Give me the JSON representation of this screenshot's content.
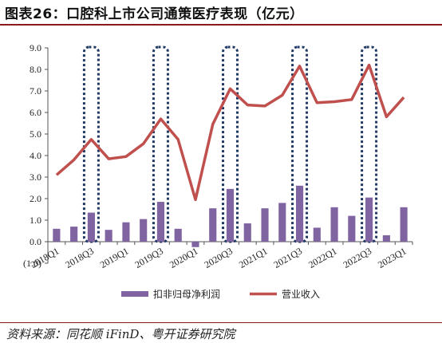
{
  "title": "图表26：口腔科上市公司通策医疗表现（亿元）",
  "source": "资料来源：同花顺 iFinD、粤开证券研究院",
  "colors": {
    "bar": "#8064a2",
    "line": "#c0504d",
    "box": "#1f3864",
    "accent": "#8b1a1a"
  },
  "chart_data": {
    "type": "bar",
    "categories": [
      "2018Q1",
      "2018Q2",
      "2018Q3",
      "2018Q4",
      "2019Q1",
      "2019Q2",
      "2019Q3",
      "2019Q4",
      "2020Q1",
      "2020Q2",
      "2020Q3",
      "2020Q4",
      "2021Q1",
      "2021Q2",
      "2021Q3",
      "2021Q4",
      "2022Q1",
      "2022Q2",
      "2022Q3",
      "2022Q4",
      "2023Q1"
    ],
    "x_tick_labels": [
      "2018Q1",
      "2018Q3",
      "2019Q1",
      "2019Q3",
      "2020Q1",
      "2020Q3",
      "2021Q1",
      "2021Q3",
      "2022Q1",
      "2022Q3",
      "2023Q1"
    ],
    "series": [
      {
        "name": "扣非归母净利润",
        "type": "bar",
        "values": [
          0.6,
          0.7,
          1.35,
          0.55,
          0.9,
          1.05,
          1.85,
          0.6,
          -0.25,
          1.55,
          2.45,
          0.85,
          1.55,
          1.8,
          2.6,
          0.65,
          1.6,
          1.2,
          2.05,
          0.3,
          1.6
        ]
      },
      {
        "name": "营业收入",
        "type": "line",
        "values": [
          3.1,
          3.8,
          4.75,
          3.85,
          3.95,
          4.55,
          5.7,
          4.75,
          1.95,
          5.45,
          7.1,
          6.35,
          6.3,
          6.8,
          8.15,
          6.45,
          6.5,
          6.6,
          8.2,
          5.8,
          6.7
        ]
      }
    ],
    "highlight_boxes": [
      "2018Q3",
      "2019Q3",
      "2020Q3",
      "2021Q3",
      "2022Q3"
    ],
    "ylim": [
      -1.0,
      9.0
    ],
    "yticks": [
      "(1.0)",
      "0.0",
      "1.0",
      "2.0",
      "3.0",
      "4.0",
      "5.0",
      "6.0",
      "7.0",
      "8.0",
      "9.0"
    ],
    "grid": false,
    "legend_position": "bottom"
  }
}
